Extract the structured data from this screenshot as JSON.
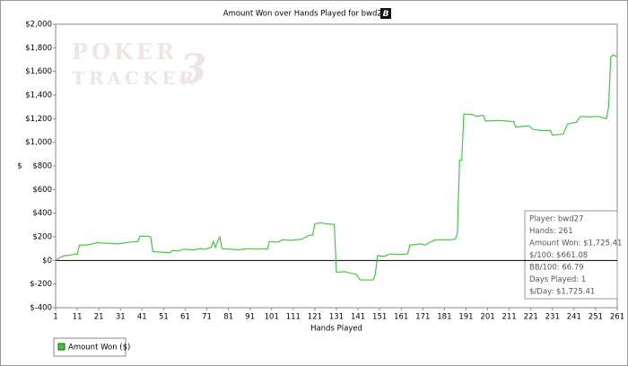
{
  "chart_data": {
    "type": "line",
    "title": "Amount Won over Hands Played for bwd27",
    "badge": "B",
    "watermark": [
      "POKER",
      "TRACKER",
      "3"
    ],
    "x_label": "Hands Played",
    "y_label": "$",
    "xlim": [
      1,
      261
    ],
    "ylim": [
      -400,
      2000
    ],
    "xticks": [
      1,
      11,
      21,
      31,
      41,
      51,
      61,
      71,
      81,
      91,
      101,
      111,
      121,
      131,
      141,
      151,
      161,
      171,
      181,
      191,
      201,
      211,
      221,
      231,
      241,
      251,
      261
    ],
    "yticks": [
      {
        "value": -400,
        "label": "$-400"
      },
      {
        "value": -200,
        "label": "$-200"
      },
      {
        "value": 0,
        "label": "$0"
      },
      {
        "value": 200,
        "label": "$200"
      },
      {
        "value": 400,
        "label": "$400"
      },
      {
        "value": 600,
        "label": "$600"
      },
      {
        "value": 800,
        "label": "$800"
      },
      {
        "value": 1000,
        "label": "$1,000"
      },
      {
        "value": 1200,
        "label": "$1,200"
      },
      {
        "value": 1400,
        "label": "$1,400"
      },
      {
        "value": 1600,
        "label": "$1,600"
      },
      {
        "value": 1800,
        "label": "$1,800"
      },
      {
        "value": 2000,
        "label": "$2,000"
      }
    ],
    "grid": false,
    "zero_line": true,
    "legend": "bottom-left",
    "x": [
      1,
      3,
      5,
      8,
      10,
      11,
      12,
      15,
      18,
      20,
      25,
      30,
      35,
      39,
      40,
      44,
      45,
      46,
      50,
      54,
      55,
      58,
      60,
      65,
      68,
      70,
      73,
      74,
      75,
      76,
      77,
      78,
      82,
      86,
      90,
      94,
      97,
      99,
      100,
      104,
      106,
      110,
      115,
      118,
      120,
      121,
      124,
      126,
      130,
      131,
      135,
      138,
      140,
      142,
      148,
      149,
      150,
      153,
      156,
      160,
      164,
      165,
      170,
      172,
      175,
      177,
      184,
      186,
      187,
      188,
      189,
      190,
      194,
      196,
      199,
      200,
      206,
      210,
      213,
      214,
      220,
      222,
      226,
      230,
      231,
      236,
      238,
      242,
      244,
      248,
      252,
      256,
      257,
      258,
      259,
      261
    ],
    "series": [
      {
        "name": "Amount Won ($)",
        "color": "#44c844",
        "values": [
          0,
          25,
          40,
          45,
          55,
          50,
          130,
          130,
          140,
          150,
          145,
          140,
          155,
          160,
          205,
          205,
          200,
          75,
          70,
          65,
          85,
          80,
          95,
          90,
          100,
          95,
          110,
          160,
          110,
          160,
          200,
          100,
          95,
          90,
          100,
          95,
          100,
          95,
          160,
          155,
          175,
          170,
          180,
          210,
          215,
          310,
          320,
          310,
          305,
          -100,
          -95,
          -110,
          -115,
          -165,
          -165,
          -120,
          40,
          35,
          55,
          50,
          55,
          130,
          140,
          130,
          160,
          175,
          175,
          180,
          230,
          850,
          850,
          1240,
          1235,
          1220,
          1230,
          1180,
          1185,
          1180,
          1175,
          1130,
          1140,
          1110,
          1100,
          1100,
          1060,
          1070,
          1155,
          1170,
          1220,
          1215,
          1220,
          1200,
          1300,
          1720,
          1740,
          1725.41
        ]
      }
    ],
    "stats": [
      "Player: bwd27",
      "Hands: 261",
      "Amount Won: $1,725.41",
      "$/100: $661.08",
      "BB/100: 66.79",
      "Days Played: 1",
      "$/Day: $1,725.41"
    ]
  }
}
